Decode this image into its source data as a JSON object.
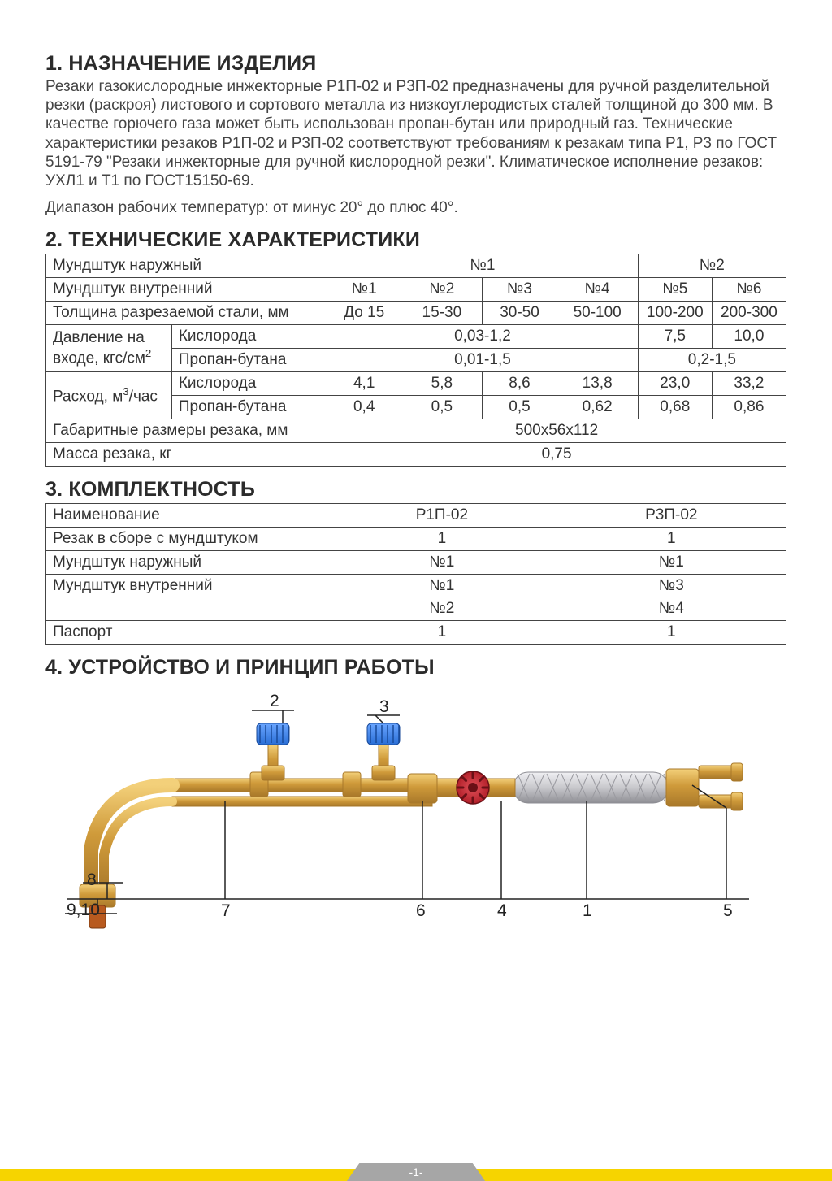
{
  "sections": {
    "s1": {
      "title": "1. НАЗНАЧЕНИЕ ИЗДЕЛИЯ"
    },
    "s2": {
      "title": "2. ТЕХНИЧЕСКИЕ ХАРАКТЕРИСТИКИ"
    },
    "s3": {
      "title": "3. КОМПЛЕКТНОСТЬ"
    },
    "s4": {
      "title": "4. УСТРОЙСТВО И ПРИНЦИП РАБОТЫ"
    }
  },
  "s1_body_1": "Резаки газокислородные инжекторные Р1П-02 и Р3П-02 предназначены для ручной разделительной резки (раскроя) листового и сортового металла из низкоуглеродистых сталей толщиной до 300 мм. В качестве горючего газа может быть использован пропан-бутан или природный газ. Технические характеристики резаков Р1П-02 и Р3П-02 соответствуют требованиям к резакам типа Р1, Р3 по ГОСТ 5191-79 \"Резаки инжекторные для ручной кислородной резки\". Климатическое исполнение резаков: УХЛ1 и Т1 по ГОСТ15150-69.",
  "s1_body_2": "Диапазон рабочих температур: от минус 20° до плюс 40°.",
  "tech": {
    "row_outer": {
      "label": "Мундштук наружный",
      "c1": "№1",
      "c2": "№2"
    },
    "row_inner": {
      "label": "Мундштук внутренний",
      "n1": "№1",
      "n2": "№2",
      "n3": "№3",
      "n4": "№4",
      "n5": "№5",
      "n6": "№6"
    },
    "row_thick": {
      "label": "Толщина разрезаемой стали, мм",
      "v1": "До 15",
      "v2": "15-30",
      "v3": "30-50",
      "v4": "50-100",
      "v5": "100-200",
      "v6": "200-300"
    },
    "pressure_label": "Давление на входе, кгс/см",
    "pressure_sup": "2",
    "flow_label": "Расход, м",
    "flow_sup": "3",
    "flow_suffix": "/час",
    "oxy": "Кислорода",
    "prop": "Пропан-бутана",
    "press_oxy": {
      "merged": "0,03-1,2",
      "v5": "7,5",
      "v6": "10,0"
    },
    "press_prop": {
      "merged": "0,01-1,5",
      "right": "0,2-1,5"
    },
    "flow_oxy": {
      "v1": "4,1",
      "v2": "5,8",
      "v3": "8,6",
      "v4": "13,8",
      "v5": "23,0",
      "v6": "33,2"
    },
    "flow_prop": {
      "v1": "0,4",
      "v2": "0,5",
      "v3": "0,5",
      "v4": "0,62",
      "v5": "0,68",
      "v6": "0,86"
    },
    "dims": {
      "label": "Габаритные размеры резака, мм",
      "val": "500х56х112"
    },
    "mass": {
      "label": "Масса резака, кг",
      "val": "0,75"
    }
  },
  "complect": {
    "header": {
      "name": "Наименование",
      "c1": "Р1П-02",
      "c2": "Р3П-02"
    },
    "rows": [
      {
        "name": "Резак в сборе с мундштуком",
        "c1": "1",
        "c2": "1"
      },
      {
        "name": "Мундштук наружный",
        "c1": "№1",
        "c2": "№1"
      },
      {
        "name": "Мундштук внутренний",
        "c1": "№1",
        "c2": "№3"
      },
      {
        "name": "",
        "c1": "№2",
        "c2": "№4"
      },
      {
        "name": "Паспорт",
        "c1": "1",
        "c2": "1"
      }
    ]
  },
  "diagram": {
    "labels": {
      "l1": "1",
      "l2": "2",
      "l3": "3",
      "l4": "4",
      "l5": "5",
      "l6": "6",
      "l7": "7",
      "l8": "8",
      "l910": "9,10"
    },
    "colors": {
      "brass": "#cf9a3a",
      "brass_dark": "#a8782a",
      "steel": "#c8c8cc",
      "steel_dark": "#8e8e94",
      "valve_blue": "#2a6fd6",
      "valve_red": "#b3202a",
      "tip": "#b85a1f",
      "line": "#222222"
    }
  },
  "page_number": "-1-"
}
